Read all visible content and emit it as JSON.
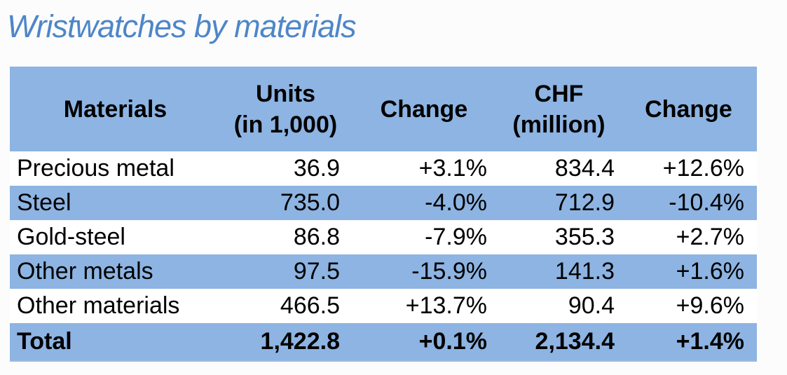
{
  "page": {
    "title": "Wristwatches by materials"
  },
  "colors": {
    "title_blue": "#4E86C8",
    "row_blue": "#8DB4E2",
    "row_white": "#FFFFFF",
    "text": "#000000"
  },
  "table": {
    "header": [
      {
        "line1": "Materials",
        "line2": ""
      },
      {
        "line1": "Units",
        "line2": "(in 1,000)"
      },
      {
        "line1": "Change",
        "line2": ""
      },
      {
        "line1": "CHF",
        "line2": "(million)"
      },
      {
        "line1": "Change",
        "line2": ""
      }
    ],
    "rows": [
      {
        "material": "Precious metal",
        "units": "36.9",
        "units_change": "+3.1%",
        "chf": "834.4",
        "chf_change": "+12.6%"
      },
      {
        "material": "Steel",
        "units": "735.0",
        "units_change": "-4.0%",
        "chf": "712.9",
        "chf_change": "-10.4%"
      },
      {
        "material": "Gold-steel",
        "units": "86.8",
        "units_change": "-7.9%",
        "chf": "355.3",
        "chf_change": "+2.7%"
      },
      {
        "material": "Other metals",
        "units": "97.5",
        "units_change": "-15.9%",
        "chf": "141.3",
        "chf_change": "+1.6%"
      },
      {
        "material": "Other materials",
        "units": "466.5",
        "units_change": "+13.7%",
        "chf": "90.4",
        "chf_change": "+9.6%"
      }
    ],
    "total": {
      "material": "Total",
      "units": "1,422.8",
      "units_change": "+0.1%",
      "chf": "2,134.4",
      "chf_change": "+1.4%"
    }
  },
  "chart_data": {
    "type": "table",
    "title": "Wristwatches by materials",
    "columns": [
      "Materials",
      "Units (in 1,000)",
      "Change",
      "CHF (million)",
      "Change"
    ],
    "rows": [
      {
        "material": "Precious metal",
        "units_thousands": 36.9,
        "units_change_pct": 3.1,
        "chf_million": 834.4,
        "chf_change_pct": 12.6
      },
      {
        "material": "Steel",
        "units_thousands": 735.0,
        "units_change_pct": -4.0,
        "chf_million": 712.9,
        "chf_change_pct": -10.4
      },
      {
        "material": "Gold-steel",
        "units_thousands": 86.8,
        "units_change_pct": -7.9,
        "chf_million": 355.3,
        "chf_change_pct": 2.7
      },
      {
        "material": "Other metals",
        "units_thousands": 97.5,
        "units_change_pct": -15.9,
        "chf_million": 141.3,
        "chf_change_pct": 1.6
      },
      {
        "material": "Other materials",
        "units_thousands": 466.5,
        "units_change_pct": 13.7,
        "chf_million": 90.4,
        "chf_change_pct": 9.6
      },
      {
        "material": "Total",
        "units_thousands": 1422.8,
        "units_change_pct": 0.1,
        "chf_million": 2134.4,
        "chf_change_pct": 1.4
      }
    ],
    "layout_hints": {
      "header_fill": "#8DB4E2",
      "banded_rows": true,
      "total_row_bold": true
    }
  }
}
